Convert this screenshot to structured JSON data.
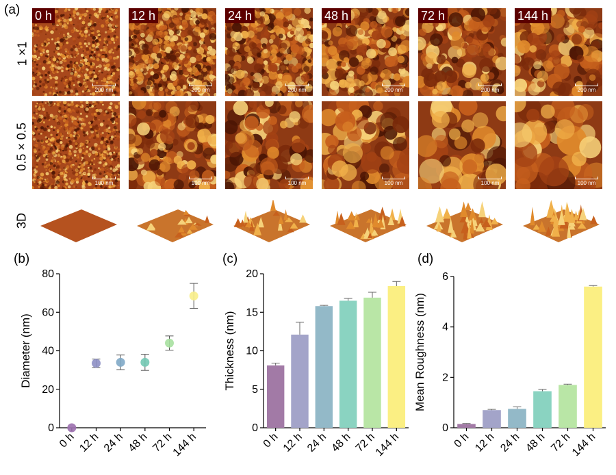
{
  "figure": {
    "panel_labels": [
      "(a)",
      "(b)",
      "(c)",
      "(d)"
    ],
    "row_labels": [
      "1 ×1",
      "0.5 × 0.5",
      "3D"
    ],
    "time_points": [
      "0 h",
      "12 h",
      "24 h",
      "48 h",
      "72 h",
      "144 h"
    ],
    "scale_bars": {
      "row1": "200 nm",
      "row2": "100 nm"
    }
  },
  "chart_data": [
    {
      "type": "scatter",
      "panel": "(b)",
      "categories": [
        "0 h",
        "12 h",
        "24 h",
        "48 h",
        "72 h",
        "144 h"
      ],
      "values": [
        0,
        33.5,
        34,
        34,
        44,
        68.5
      ],
      "errors": [
        0,
        2.2,
        3.8,
        4.2,
        3.7,
        6.5
      ],
      "ylabel": "Diameter (nm)",
      "xlabel": "",
      "ylim": [
        0,
        80
      ],
      "yticks": [
        0,
        20,
        40,
        60,
        80
      ],
      "colors": [
        "#9b6fae",
        "#8d8fc4",
        "#7fa9c6",
        "#74c9b4",
        "#a7e0a0",
        "#f8ee8a"
      ]
    },
    {
      "type": "bar",
      "panel": "(c)",
      "categories": [
        "0 h",
        "12 h",
        "24 h",
        "48 h",
        "72 h",
        "144 h"
      ],
      "values": [
        8.1,
        12.1,
        15.8,
        16.5,
        16.9,
        18.4
      ],
      "errors": [
        0.3,
        1.6,
        0.1,
        0.3,
        0.7,
        0.6
      ],
      "ylabel": "Thickness (nm)",
      "xlabel": "",
      "ylim": [
        0,
        20
      ],
      "yticks": [
        0,
        5,
        10,
        15,
        20
      ],
      "colors": [
        "#a27aa6",
        "#a3a4c9",
        "#93b9c8",
        "#8ad3c1",
        "#b9e6a6",
        "#fbef83"
      ]
    },
    {
      "type": "bar",
      "panel": "(d)",
      "categories": [
        "0 h",
        "12 h",
        "24 h",
        "48 h",
        "72 h",
        "144 h"
      ],
      "values": [
        0.15,
        0.7,
        0.75,
        1.45,
        1.7,
        5.6
      ],
      "errors": [
        0.02,
        0.03,
        0.08,
        0.07,
        0.03,
        0.04
      ],
      "ylabel": "Mean Roughness (nm)",
      "xlabel": "",
      "ylim": [
        0,
        6
      ],
      "yticks": [
        0,
        2,
        4,
        6
      ],
      "colors": [
        "#a27aa6",
        "#a3a4c9",
        "#93b9c8",
        "#8ad3c1",
        "#b9e6a6",
        "#fbef83"
      ]
    }
  ]
}
